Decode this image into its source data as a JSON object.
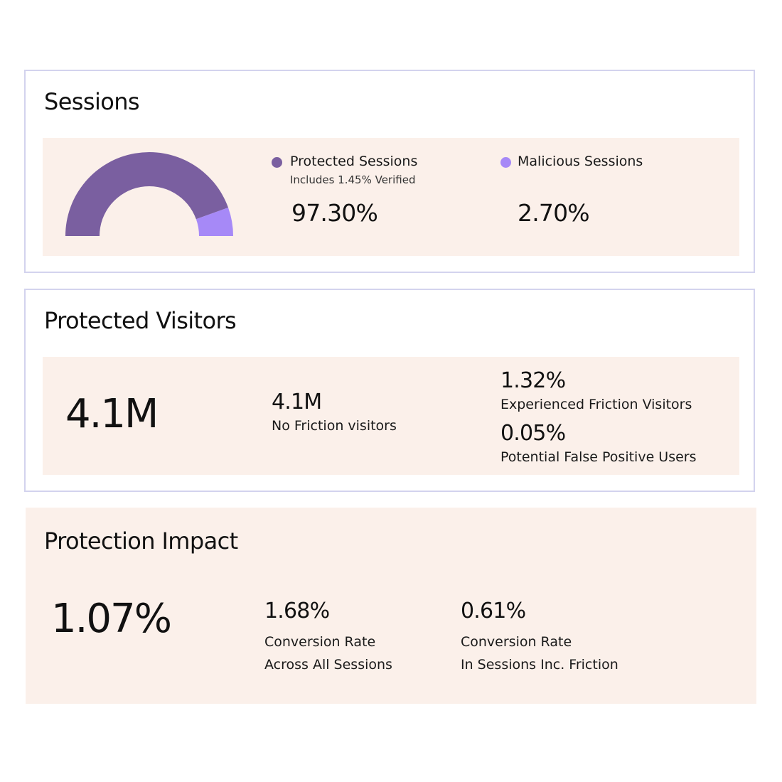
{
  "sessions": {
    "title": "Sessions",
    "legend": [
      {
        "label": "Protected Sessions",
        "sub": "Includes 1.45% Verified",
        "value": "97.30%",
        "color": "#7a5fa0"
      },
      {
        "label": "Malicious Sessions",
        "sub": "",
        "value": "2.70%",
        "color": "#a689f7"
      }
    ],
    "chart_data": {
      "type": "pie",
      "style": "half-donut",
      "categories": [
        "Protected Sessions",
        "Malicious Sessions"
      ],
      "values": [
        97.3,
        2.7
      ],
      "colors": [
        "#7a5fa0",
        "#a689f7"
      ],
      "display_malicious_fraction": 0.11
    }
  },
  "visitors": {
    "title": "Protected Visitors",
    "total": "4.1M",
    "no_friction": {
      "value": "4.1M",
      "label": "No Friction visitors"
    },
    "friction": {
      "value": "1.32%",
      "label": "Experienced Friction Visitors"
    },
    "false_positive": {
      "value": "0.05%",
      "label": "Potential False Positive Users"
    }
  },
  "impact": {
    "title": "Protection Impact",
    "total": "1.07%",
    "all_sessions": {
      "value": "1.68%",
      "line1": "Conversion Rate",
      "line2": "Across All Sessions"
    },
    "friction_sessions": {
      "value": "0.61%",
      "line1": "Conversion Rate",
      "line2": "In Sessions Inc. Friction"
    }
  }
}
